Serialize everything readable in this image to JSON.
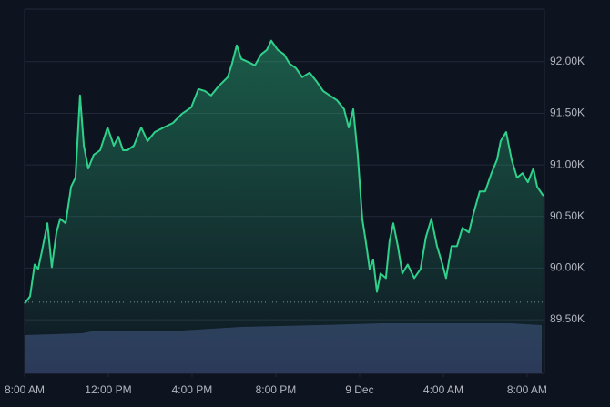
{
  "chart_data": {
    "type": "area",
    "x": [
      0,
      0.26,
      0.48,
      0.65,
      0.83,
      1.09,
      1.3,
      1.52,
      1.7,
      1.96,
      2.22,
      2.43,
      2.65,
      2.83,
      3.04,
      3.3,
      3.61,
      3.96,
      4.26,
      4.48,
      4.7,
      4.91,
      5.22,
      5.57,
      5.87,
      6.22,
      6.65,
      7.09,
      7.52,
      7.96,
      8.3,
      8.61,
      8.91,
      9.26,
      9.7,
      9.91,
      10.13,
      10.35,
      10.65,
      11,
      11.3,
      11.57,
      11.78,
      12.09,
      12.39,
      12.65,
      12.96,
      13.26,
      13.61,
      13.96,
      14.26,
      14.57,
      14.91,
      15.26,
      15.48,
      15.7,
      15.91,
      16.13,
      16.3,
      16.48,
      16.65,
      16.83,
      17,
      17.26,
      17.43,
      17.61,
      17.83,
      18.04,
      18.3,
      18.61,
      18.91,
      19.17,
      19.43,
      19.7,
      19.96,
      20.13,
      20.39,
      20.65,
      20.91,
      21.22,
      21.43,
      21.74,
      22,
      22.3,
      22.57,
      22.74,
      23,
      23.26,
      23.52,
      23.78,
      24.04,
      24.3,
      24.48,
      24.78
    ],
    "series": [
      {
        "color": "#2fd18a",
        "values": [
          89655,
          89726,
          90035,
          89991,
          90168,
          90434,
          90009,
          90345,
          90478,
          90434,
          90788,
          90876,
          91673,
          91186,
          90965,
          91097,
          91142,
          91363,
          91186,
          91274,
          91142,
          91142,
          91186,
          91363,
          91230,
          91319,
          91363,
          91407,
          91496,
          91558,
          91735,
          91717,
          91673,
          91761,
          91850,
          91982,
          92159,
          92027,
          92000,
          91965,
          92071,
          92115,
          92204,
          92115,
          92071,
          91982,
          91938,
          91850,
          91894,
          91805,
          91717,
          91673,
          91628,
          91540,
          91363,
          91540,
          91097,
          90478,
          90257,
          89991,
          90080,
          89770,
          89947,
          89903,
          90257,
          90434,
          90212,
          89947,
          90035,
          89903,
          89991,
          90301,
          90478,
          90212,
          90035,
          89903,
          90212,
          90212,
          90389,
          90345,
          90522,
          90743,
          90743,
          90920,
          91053,
          91230,
          91319,
          91053,
          90876,
          90920,
          90832,
          90965,
          90788,
          90699
        ]
      }
    ],
    "reference_line": 89670,
    "xlim": [
      0,
      24.83
    ],
    "xticks": [
      {
        "value": 0,
        "label": "8:00 AM"
      },
      {
        "value": 4,
        "label": "12:00 PM"
      },
      {
        "value": 8,
        "label": "4:00 PM"
      },
      {
        "value": 12,
        "label": "8:00 PM"
      },
      {
        "value": 16,
        "label": "9 Dec"
      },
      {
        "value": 20,
        "label": "4:00 AM"
      },
      {
        "value": 24,
        "label": "8:00 AM"
      }
    ],
    "ylim": [
      88980,
      92510
    ],
    "yticks": [
      {
        "value": 89500,
        "label": "89.50K"
      },
      {
        "value": 90000,
        "label": "90.00K"
      },
      {
        "value": 90500,
        "label": "90.50K"
      },
      {
        "value": 91000,
        "label": "91.00K"
      },
      {
        "value": 91500,
        "label": "91.50K"
      },
      {
        "value": 92000,
        "label": "92.00K"
      }
    ],
    "grid": true
  }
}
